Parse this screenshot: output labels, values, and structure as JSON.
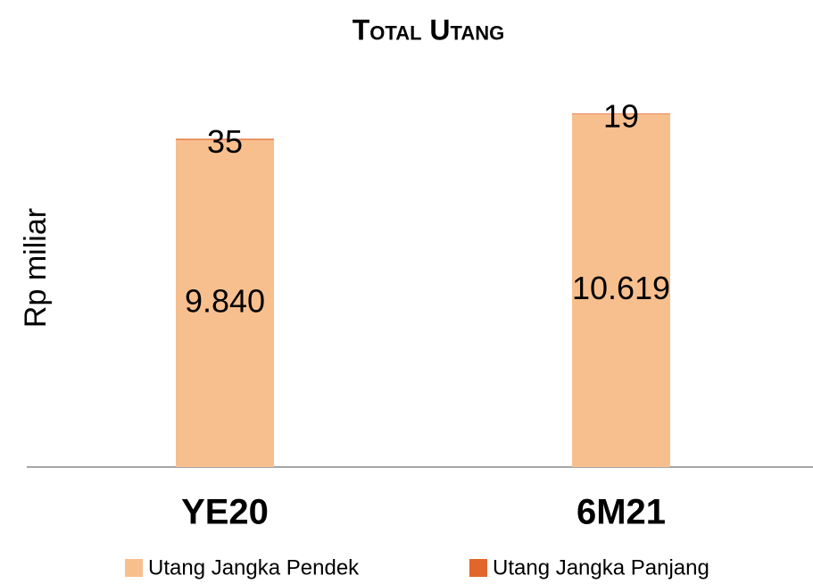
{
  "chart_data": {
    "type": "stacked_bar",
    "title": "Total Utang",
    "y_label": "Rp miliar",
    "categories": [
      "YE20",
      "6M21"
    ],
    "series": [
      {
        "name": "Utang Jangka Pendek",
        "color": "#f8bf8e",
        "values": [
          9840,
          10619
        ],
        "value_labels": [
          "9.840",
          "10.619"
        ]
      },
      {
        "name": "Utang Jangka Panjang",
        "color": "#e0662a",
        "values": [
          35,
          19
        ]
      }
    ]
  }
}
